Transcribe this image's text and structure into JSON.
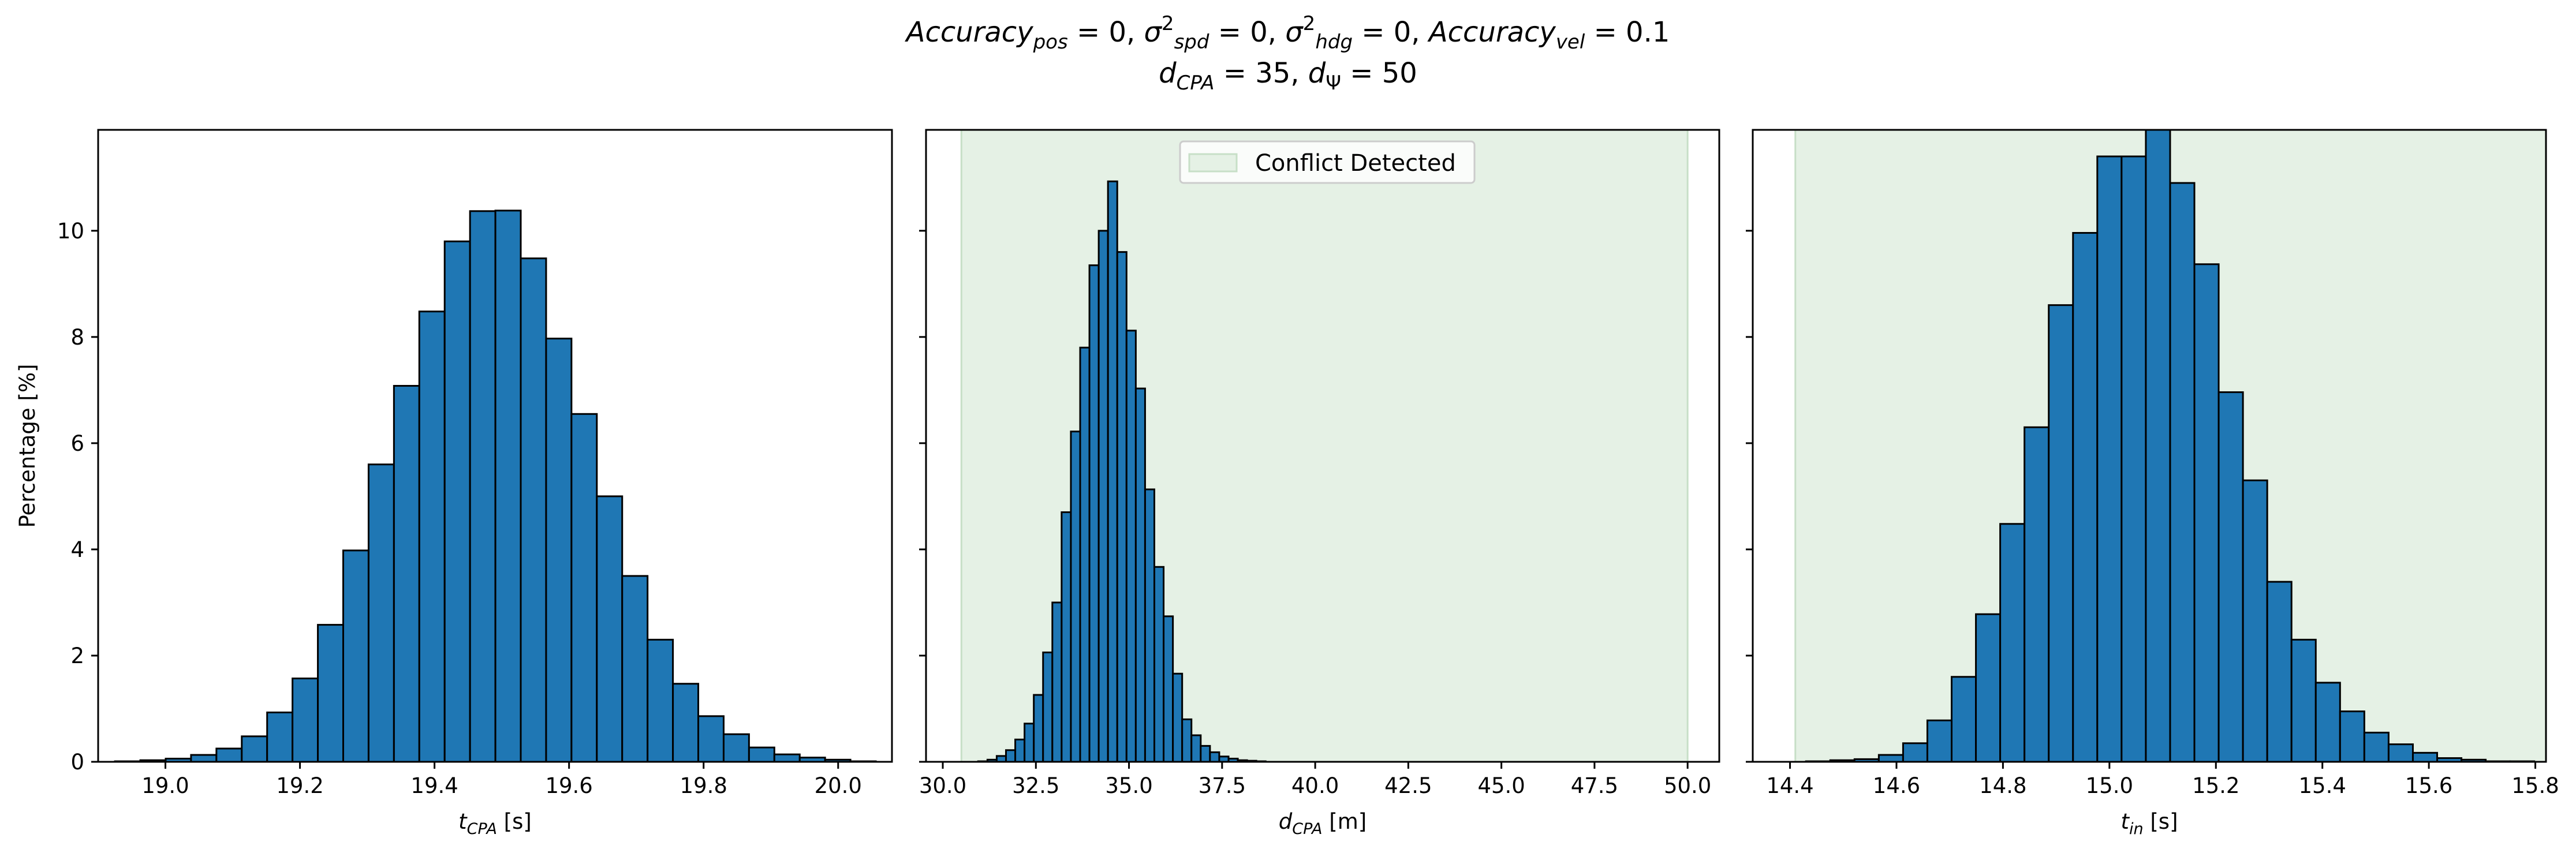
{
  "title": {
    "line1": "Accuracy_pos = 0, σ²_spd = 0, σ²_hdg = 0, Accuracy_vel = 0.1",
    "line2": "d_CPA = 35, d_Ψ = 50"
  },
  "colors": {
    "bar_fill": "#1f77b4",
    "bar_edge": "#000000",
    "conflict_shade": "#e5f1e5"
  },
  "chart_data": [
    {
      "type": "bar",
      "id": "tcpa",
      "xlabel": "t_CPA [s]",
      "ylabel": "Percentage [%]",
      "xlim": [
        18.9,
        20.08
      ],
      "ylim": [
        0,
        11.9
      ],
      "xticks": [
        "19.0",
        "19.2",
        "19.4",
        "19.6",
        "19.8",
        "20.0"
      ],
      "yticks": [
        "0",
        "2",
        "4",
        "6",
        "8",
        "10"
      ],
      "bins": {
        "start": 18.925,
        "width": 0.0377
      },
      "values": [
        0.01,
        0.03,
        0.06,
        0.13,
        0.25,
        0.48,
        0.93,
        1.57,
        2.58,
        3.98,
        5.6,
        7.08,
        8.48,
        9.8,
        10.37,
        10.38,
        9.48,
        7.97,
        6.55,
        5.0,
        3.5,
        2.3,
        1.47,
        0.86,
        0.52,
        0.27,
        0.14,
        0.08,
        0.04,
        0.01
      ],
      "shaded_region": null,
      "legend": null
    },
    {
      "type": "bar",
      "id": "dcpa",
      "xlabel": "d_CPA [m]",
      "ylabel": "",
      "xlim": [
        29.55,
        50.85
      ],
      "ylim": [
        0,
        11.9
      ],
      "xticks": [
        "30.0",
        "32.5",
        "35.0",
        "37.5",
        "40.0",
        "42.5",
        "45.0",
        "47.5",
        "50.0"
      ],
      "yticks": [
        "",
        "",
        "",
        "",
        "",
        ""
      ],
      "bins": {
        "start": 30.95,
        "width": 0.249
      },
      "values": [
        0.01,
        0.04,
        0.11,
        0.22,
        0.42,
        0.72,
        1.26,
        2.06,
        3.0,
        4.7,
        6.22,
        7.8,
        9.35,
        10.0,
        10.93,
        9.6,
        8.12,
        7.03,
        5.13,
        3.67,
        2.74,
        1.66,
        0.8,
        0.5,
        0.3,
        0.18,
        0.1,
        0.06,
        0.03,
        0.02,
        0.01
      ],
      "shaded_region": [
        30.5,
        50.0
      ],
      "legend": {
        "label": "Conflict Detected",
        "position": "upper-center"
      }
    },
    {
      "type": "bar",
      "id": "tin",
      "xlabel": "t_in [s]",
      "ylabel": "",
      "xlim": [
        14.33,
        15.82
      ],
      "ylim": [
        0,
        11.9
      ],
      "xticks": [
        "14.4",
        "14.6",
        "14.8",
        "15.0",
        "15.2",
        "15.4",
        "15.6",
        "15.8"
      ],
      "yticks": [
        "",
        "",
        "",
        "",
        "",
        ""
      ],
      "bins": {
        "start": 14.43,
        "width": 0.0456
      },
      "values": [
        0.01,
        0.03,
        0.05,
        0.13,
        0.35,
        0.78,
        1.6,
        2.78,
        4.48,
        6.3,
        8.6,
        9.96,
        11.4,
        11.4,
        13.2,
        10.9,
        9.37,
        6.96,
        5.3,
        3.39,
        2.3,
        1.49,
        0.95,
        0.55,
        0.33,
        0.17,
        0.07,
        0.04,
        0.01,
        0.01
      ],
      "shaded_region": [
        14.41,
        15.82
      ],
      "legend": null
    }
  ]
}
